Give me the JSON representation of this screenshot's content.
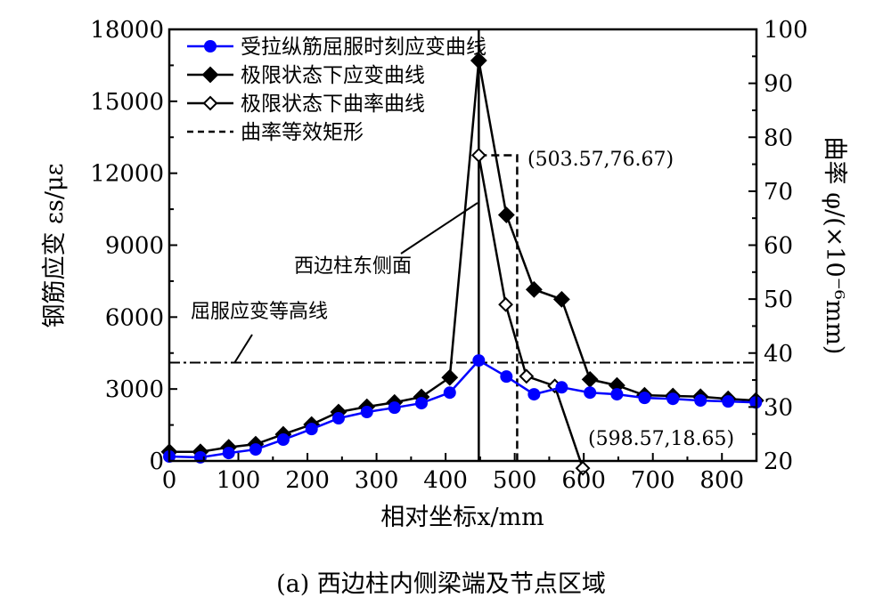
{
  "chart_data": {
    "type": "line",
    "caption": "(a)  西边柱内侧梁端及节点区域",
    "xlabel": "相对坐标x/mm",
    "ylabel": "钢筋应变 εs/με",
    "y2label": "曲率 φ/(×10⁻⁶mm)",
    "xlim": [
      0,
      850
    ],
    "ylim": [
      0,
      18000
    ],
    "y2lim": [
      20,
      100
    ],
    "xticks": [
      0,
      100,
      200,
      300,
      400,
      500,
      600,
      700,
      800
    ],
    "yticks": [
      0,
      3000,
      6000,
      9000,
      12000,
      15000,
      18000
    ],
    "y2ticks": [
      20,
      30,
      40,
      50,
      60,
      70,
      80,
      90,
      100
    ],
    "legend_position": "top-left",
    "series": [
      {
        "name": "受拉纵筋屈服时刻应变曲线",
        "axis": "left",
        "color": "#0000ff",
        "marker": "circle",
        "x": [
          0,
          45,
          86,
          125,
          165,
          206,
          245,
          286,
          326,
          365,
          406,
          448,
          488,
          528,
          568,
          609,
          648,
          688,
          729,
          769,
          809,
          849
        ],
        "y": [
          185,
          150,
          330,
          480,
          890,
          1330,
          1780,
          2040,
          2220,
          2410,
          2850,
          4190,
          3520,
          2780,
          3070,
          2850,
          2780,
          2630,
          2590,
          2520,
          2480,
          2440
        ]
      },
      {
        "name": "极限状态下应变曲线",
        "axis": "left",
        "color": "#000000",
        "marker": "diamond",
        "x": [
          0,
          45,
          86,
          125,
          165,
          206,
          245,
          286,
          326,
          365,
          406,
          448,
          488,
          528,
          568,
          609,
          648,
          688,
          729,
          769,
          809,
          849
        ],
        "y": [
          380,
          380,
          570,
          700,
          1110,
          1520,
          2040,
          2260,
          2440,
          2670,
          3480,
          16700,
          10260,
          7150,
          6740,
          3400,
          3150,
          2740,
          2710,
          2680,
          2590,
          2520
        ]
      },
      {
        "name": "极限状态下曲率曲线",
        "axis": "right",
        "color": "#000000",
        "marker": "open-diamond",
        "x": [
          448,
          487,
          517,
          558,
          598.57
        ],
        "y": [
          76.67,
          49.0,
          35.7,
          33.9,
          18.65
        ]
      }
    ],
    "rect_legend": "曲率等效矩形",
    "rect": {
      "x0": 448,
      "x1": 503.57,
      "y": 76.67
    },
    "yield_line": {
      "label": "屈服应变等高线",
      "y": 4100
    },
    "column_line": {
      "label": "西边柱东侧面",
      "x": 448
    },
    "annotations": [
      "(503.57,76.67)",
      "(598.57,18.65)"
    ]
  }
}
